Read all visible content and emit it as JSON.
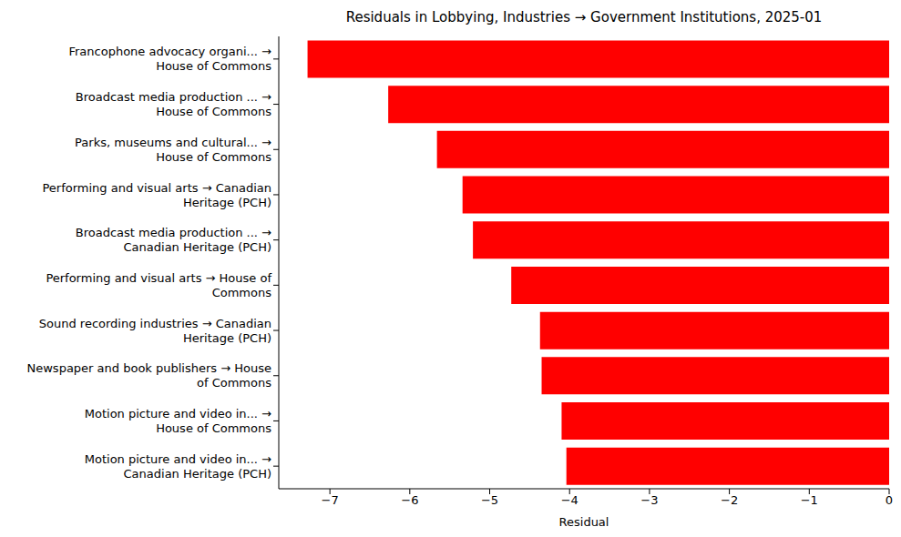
{
  "chart_data": {
    "type": "bar",
    "orientation": "horizontal",
    "title": "Residuals in Lobbying, Industries → Government Institutions, 2025-01",
    "x_label": "Residual",
    "categories": [
      "Francophone advocacy organi... →\nHouse of Commons",
      "Broadcast media production ... →\nHouse of Commons",
      "Parks, museums and cultural... →\nHouse of Commons",
      "Performing and visual arts → Canadian\nHeritage (PCH)",
      "Broadcast media production ... →\nCanadian Heritage (PCH)",
      "Performing and visual arts → House of\nCommons",
      "Sound recording industries → Canadian\nHeritage (PCH)",
      "Newspaper and book publishers → House\nof Commons",
      "Motion picture and video in... →\nHouse of Commons",
      "Motion picture and video in... →\nCanadian Heritage (PCH)"
    ],
    "values": [
      -7.28,
      -6.27,
      -5.66,
      -5.34,
      -5.21,
      -4.73,
      -4.37,
      -4.35,
      -4.1,
      -4.04
    ],
    "color": "#ff0000",
    "xlim": [
      -7.64,
      0
    ],
    "xticks": [
      {
        "value": -7,
        "label": "−7"
      },
      {
        "value": -6,
        "label": "−6"
      },
      {
        "value": -5,
        "label": "−5"
      },
      {
        "value": -4,
        "label": "−4"
      },
      {
        "value": -3,
        "label": "−3"
      },
      {
        "value": -2,
        "label": "−2"
      },
      {
        "value": -1,
        "label": "−1"
      },
      0
    ],
    "grid": false
  }
}
